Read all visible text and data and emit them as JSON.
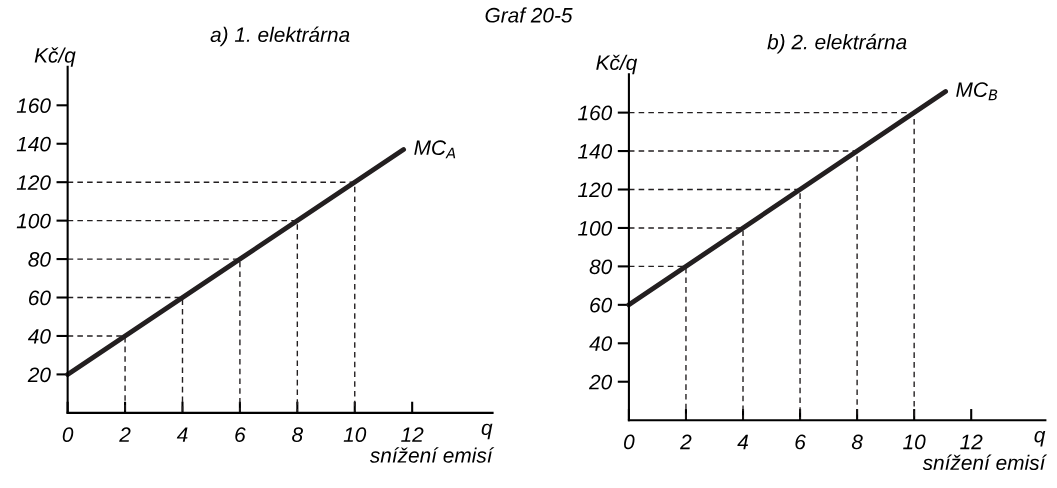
{
  "chart_data": [
    {
      "type": "line",
      "title": "a) 1. elektrárna",
      "xlabel": "q",
      "ylabel": "Kč/q",
      "annotations": [
        "Graf 20-5",
        "snížení emisí"
      ],
      "xlim": [
        0,
        14.8
      ],
      "ylim": [
        0,
        180
      ],
      "xticks": [
        0,
        2,
        4,
        6,
        8,
        10,
        12
      ],
      "yticks": [
        20,
        40,
        60,
        80,
        100,
        120,
        140,
        160
      ],
      "series": [
        {
          "name": "MC$_{A}$",
          "color": "#231f20",
          "x": [
            0,
            11.7
          ],
          "values": [
            20,
            137
          ],
          "line_style": "solid"
        },
        {
          "color": "#231f20",
          "x": [
            0,
            2,
            2
          ],
          "values": [
            40,
            40,
            0
          ],
          "line_style": "dashed"
        },
        {
          "color": "#231f20",
          "x": [
            0,
            4,
            4
          ],
          "values": [
            60,
            60,
            0
          ],
          "line_style": "dashed"
        },
        {
          "color": "#231f20",
          "x": [
            0,
            6,
            6
          ],
          "values": [
            80,
            80,
            0
          ],
          "line_style": "dashed"
        },
        {
          "color": "#231f20",
          "x": [
            0,
            8,
            8
          ],
          "values": [
            100,
            100,
            0
          ],
          "line_style": "dashed"
        },
        {
          "color": "#231f20",
          "x": [
            0,
            10,
            10
          ],
          "values": [
            120,
            120,
            0
          ],
          "line_style": "dashed"
        }
      ]
    },
    {
      "type": "line",
      "title": "b) 2. elektrárna",
      "xlabel": "q",
      "ylabel": "Kč/q",
      "annotations": [
        "snížení emisí"
      ],
      "xlim": [
        0,
        14.6
      ],
      "ylim": [
        0,
        180
      ],
      "xticks": [
        0,
        2,
        4,
        6,
        8,
        10,
        12
      ],
      "yticks": [
        20,
        40,
        60,
        80,
        100,
        120,
        140,
        160
      ],
      "series": [
        {
          "name": "MC$_{B}$",
          "color": "#231f20",
          "x": [
            0,
            11.1
          ],
          "values": [
            60,
            171
          ],
          "line_style": "solid"
        },
        {
          "color": "#231f20",
          "x": [
            0,
            2,
            2
          ],
          "values": [
            80,
            80,
            0
          ],
          "line_style": "dashed"
        },
        {
          "color": "#231f20",
          "x": [
            0,
            4,
            4
          ],
          "values": [
            100,
            100,
            0
          ],
          "line_style": "dashed"
        },
        {
          "color": "#231f20",
          "x": [
            0,
            6,
            6
          ],
          "values": [
            120,
            120,
            0
          ],
          "line_style": "dashed"
        },
        {
          "color": "#231f20",
          "x": [
            0,
            8,
            8
          ],
          "values": [
            140,
            140,
            0
          ],
          "line_style": "dashed"
        },
        {
          "color": "#231f20",
          "x": [
            0,
            10,
            10
          ],
          "values": [
            160,
            160,
            0
          ],
          "line_style": "dashed"
        }
      ]
    }
  ]
}
